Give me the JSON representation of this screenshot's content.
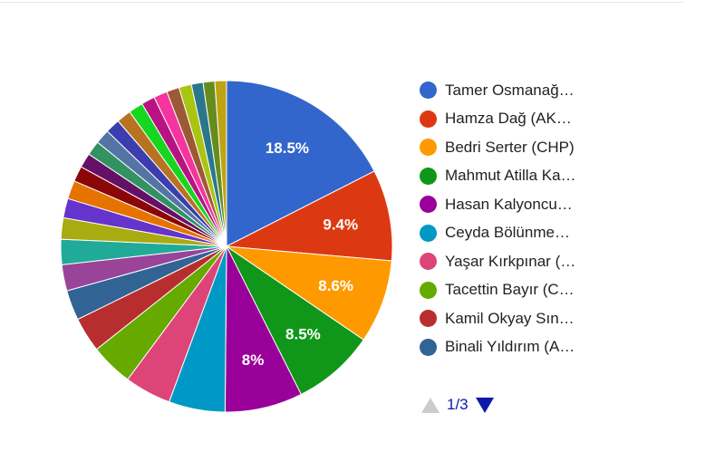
{
  "chart_data": {
    "type": "pie",
    "title": "",
    "slices": [
      {
        "label": "Tamer Osmanağ…",
        "value": 18.5,
        "color": "#3366cc",
        "show_label": "18.5%"
      },
      {
        "label": "Hamza Dağ (AK…",
        "value": 9.4,
        "color": "#dc3912",
        "show_label": "9.4%"
      },
      {
        "label": "Bedri Serter (CHP)",
        "value": 8.6,
        "color": "#ff9900",
        "show_label": "8.6%"
      },
      {
        "label": "Mahmut Atilla Ka…",
        "value": 8.5,
        "color": "#109618",
        "show_label": "8.5%"
      },
      {
        "label": "Hasan Kalyoncu…",
        "value": 8.0,
        "color": "#990099",
        "show_label": "8%"
      },
      {
        "label": "Ceyda Bölünme…",
        "value": 5.8,
        "color": "#0099c6",
        "show_label": ""
      },
      {
        "label": "Yaşar Kırkpınar (…",
        "value": 4.8,
        "color": "#dd4477",
        "show_label": ""
      },
      {
        "label": "Tacettin Bayır (C…",
        "value": 4.4,
        "color": "#66aa00",
        "show_label": ""
      },
      {
        "label": "Kamil Okyay Sın…",
        "value": 3.6,
        "color": "#b82e2e",
        "show_label": ""
      },
      {
        "label": "Binali Yıldırım (A…",
        "value": 3.1,
        "color": "#316395",
        "show_label": ""
      },
      {
        "label": "",
        "value": 2.7,
        "color": "#994499",
        "show_label": ""
      },
      {
        "label": "",
        "value": 2.6,
        "color": "#22aa99",
        "show_label": ""
      },
      {
        "label": "",
        "value": 2.2,
        "color": "#aaaa11",
        "show_label": ""
      },
      {
        "label": "",
        "value": 2.0,
        "color": "#6633cc",
        "show_label": ""
      },
      {
        "label": "",
        "value": 1.9,
        "color": "#e67300",
        "show_label": ""
      },
      {
        "label": "",
        "value": 1.6,
        "color": "#8b0707",
        "show_label": ""
      },
      {
        "label": "",
        "value": 1.5,
        "color": "#651067",
        "show_label": ""
      },
      {
        "label": "",
        "value": 1.5,
        "color": "#329262",
        "show_label": ""
      },
      {
        "label": "",
        "value": 1.5,
        "color": "#5574a6",
        "show_label": ""
      },
      {
        "label": "",
        "value": 1.5,
        "color": "#3b3eac",
        "show_label": ""
      },
      {
        "label": "",
        "value": 1.5,
        "color": "#b77322",
        "show_label": ""
      },
      {
        "label": "",
        "value": 1.5,
        "color": "#16d620",
        "show_label": ""
      },
      {
        "label": "",
        "value": 1.4,
        "color": "#b91383",
        "show_label": ""
      },
      {
        "label": "",
        "value": 1.4,
        "color": "#f4359e",
        "show_label": ""
      },
      {
        "label": "",
        "value": 1.3,
        "color": "#9c5935",
        "show_label": ""
      },
      {
        "label": "",
        "value": 1.3,
        "color": "#a9c413",
        "show_label": ""
      },
      {
        "label": "",
        "value": 1.2,
        "color": "#2a778d",
        "show_label": ""
      },
      {
        "label": "",
        "value": 1.2,
        "color": "#668d1c",
        "show_label": ""
      },
      {
        "label": "",
        "value": 1.2,
        "color": "#bea413",
        "show_label": ""
      }
    ],
    "legend_position": "right"
  },
  "legend": {
    "items": [
      {
        "label": "Tamer Osmanağ…",
        "color": "#3366cc"
      },
      {
        "label": "Hamza Dağ (AK…",
        "color": "#dc3912"
      },
      {
        "label": "Bedri Serter (CHP)",
        "color": "#ff9900"
      },
      {
        "label": "Mahmut Atilla Ka…",
        "color": "#109618"
      },
      {
        "label": "Hasan Kalyoncu…",
        "color": "#990099"
      },
      {
        "label": "Ceyda Bölünme…",
        "color": "#0099c6"
      },
      {
        "label": "Yaşar Kırkpınar (…",
        "color": "#dd4477"
      },
      {
        "label": "Tacettin Bayır (C…",
        "color": "#66aa00"
      },
      {
        "label": "Kamil Okyay Sın…",
        "color": "#b82e2e"
      },
      {
        "label": "Binali Yıldırım (A…",
        "color": "#316395"
      }
    ]
  },
  "pager": {
    "text": "1/3",
    "prev_enabled": false,
    "next_enabled": true,
    "active_color": "#0a1aa8",
    "disabled_color": "#cccccc"
  }
}
